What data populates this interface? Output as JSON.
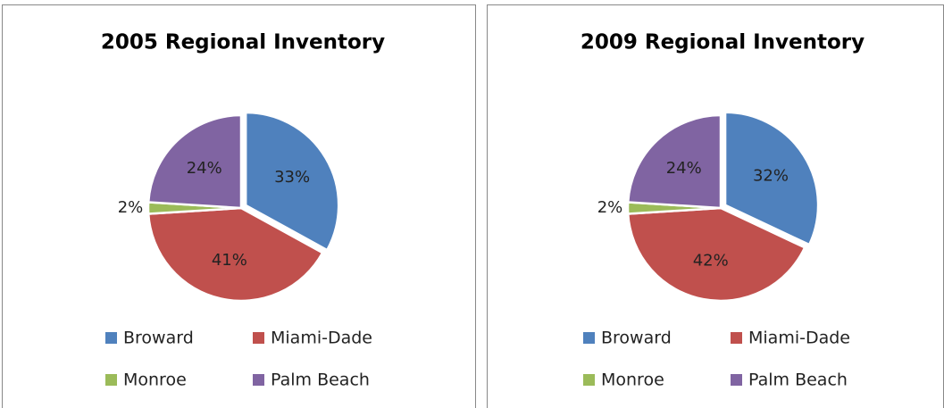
{
  "chart_data": [
    {
      "type": "pie",
      "title": "2005 Regional Inventory",
      "categories": [
        "Broward",
        "Miami-Dade",
        "Monroe",
        "Palm Beach"
      ],
      "values": [
        33,
        41,
        2,
        24
      ],
      "value_labels": [
        "33%",
        "41%",
        "2%",
        "24%"
      ],
      "colors": [
        "#4f81bd",
        "#c0504d",
        "#9bbb59",
        "#8064a2"
      ]
    },
    {
      "type": "pie",
      "title": "2009 Regional Inventory",
      "categories": [
        "Broward",
        "Miami-Dade",
        "Monroe",
        "Palm Beach"
      ],
      "values": [
        32,
        42,
        2,
        24
      ],
      "value_labels": [
        "32%",
        "42%",
        "2%",
        "24%"
      ],
      "colors": [
        "#4f81bd",
        "#c0504d",
        "#9bbb59",
        "#8064a2"
      ]
    }
  ]
}
